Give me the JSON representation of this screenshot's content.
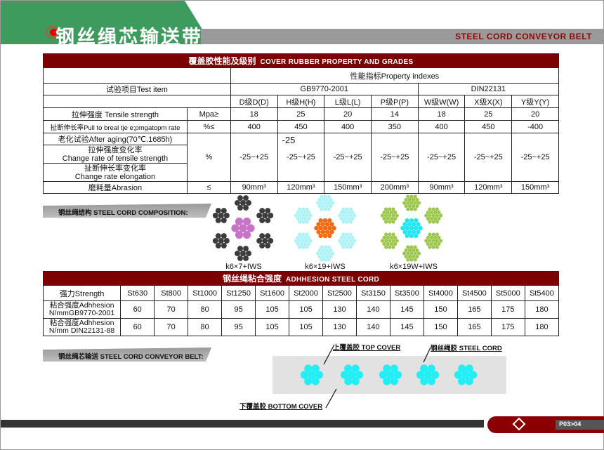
{
  "header": {
    "title": "钢丝绳芯输送带",
    "subtitle": "STEEL CORD CONVEYOR BELT"
  },
  "cover_table": {
    "title_cn": "覆盖胶性能及级别",
    "title_en": "COVER RUBBER PROPERTY AND GRADES",
    "property_indexes": "性能指标Property indexes",
    "test_item": "试验项目Test item",
    "standards": [
      "GB9770-2001",
      "DIN22131"
    ],
    "grades": [
      "D级D(D)",
      "H级H(H)",
      "L级L(L)",
      "P级P(P)",
      "W级W(W)",
      "X级X(X)",
      "Y级Y(Y)"
    ],
    "rows": [
      {
        "label": "拉伸强度 Tensile strength",
        "unit": "Mpa≥",
        "values": [
          "18",
          "25",
          "20",
          "14",
          "18",
          "25",
          "20"
        ]
      },
      {
        "label": "扯断伸长率Pull to breal tje e;pmgatopm rate",
        "unit": "%≤",
        "values": [
          "400",
          "450",
          "400",
          "350",
          "400",
          "450",
          "-400"
        ]
      }
    ],
    "aging": {
      "labels": [
        "老化试验After aging(70℃.1685h)",
        "拉伸强度变化率",
        "Change rate of tensile strength",
        "扯断伸长率变化率",
        "Change rate elongation"
      ],
      "unit": "%",
      "h_note": "-25",
      "values": [
        "-25~+25",
        "-25~+25",
        "-25~+25",
        "-25~+25",
        "-25~+25",
        "-25~+25",
        "-25~+25"
      ]
    },
    "abrasion": {
      "label": "磨耗量Abrasion",
      "unit": "≤",
      "values": [
        "90mm³",
        "120mm³",
        "150mm³",
        "200mm³",
        "90mm³",
        "120mm³",
        "150mm³"
      ]
    }
  },
  "composition": {
    "label": "钢丝绳结构 STEEL CORD COMPOSITION:",
    "items": [
      {
        "caption": "k6×7+IWS",
        "outer_color": "#3c3c3c",
        "core_color": "#c873c8"
      },
      {
        "caption": "k6×19+IWS",
        "outer_color": "#aef2f6",
        "core_color": "#f26a12"
      },
      {
        "caption": "k6×19W+IWS",
        "outer_color": "#9cc64c",
        "core_color": "#22e6f2"
      }
    ]
  },
  "adhesion_table": {
    "title_cn": "钢丝绳粘合强度",
    "title_en": "ADHHESION STEEL CORD",
    "strength_label": "强力Strength",
    "strengths": [
      "St630",
      "St800",
      "St1000",
      "St1250",
      "St1600",
      "St2000",
      "St2500",
      "St3150",
      "St3500",
      "St4000",
      "St4500",
      "St5000",
      "St5400"
    ],
    "rows": [
      {
        "label1": "粘合强度Adhhesion",
        "label2": "N/mmGB9770-2001",
        "values": [
          "60",
          "70",
          "80",
          "95",
          "105",
          "105",
          "130",
          "140",
          "145",
          "150",
          "165",
          "175",
          "180"
        ]
      },
      {
        "label1": "粘合强度Adhhesion",
        "label2": "N/mm DIN22131-88",
        "values": [
          "60",
          "70",
          "80",
          "95",
          "105",
          "105",
          "130",
          "140",
          "145",
          "150",
          "165",
          "175",
          "180"
        ]
      }
    ]
  },
  "belt": {
    "label": "钢丝绳芯输送 STEEL CORD CONVEYOR BELT:",
    "top_cover": "上覆盖胶 TOP COVER",
    "steel_cord": "钢丝绳胶 STEEL CORD",
    "bottom_cover": "下覆盖胶 BOTTOM COVER",
    "cord_color": "#22eef5"
  },
  "footer": {
    "page": "P03>04"
  }
}
